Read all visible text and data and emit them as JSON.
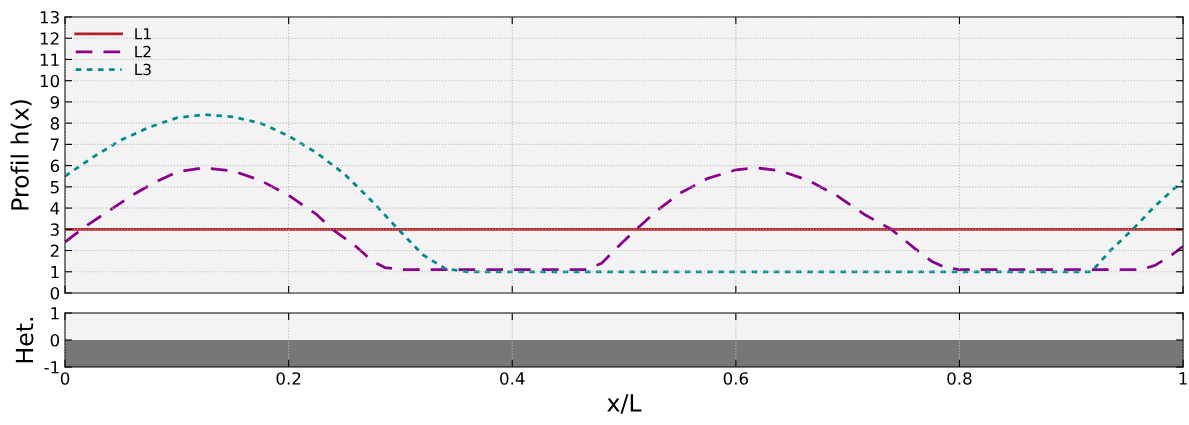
{
  "chart_data": [
    {
      "type": "line",
      "ylabel": "Profil h(x)",
      "xlim": [
        0,
        1
      ],
      "ylim": [
        0,
        13
      ],
      "xticks": [
        0,
        0.2,
        0.4,
        0.6,
        0.8,
        1
      ],
      "yticks": [
        0,
        1,
        2,
        3,
        4,
        5,
        6,
        7,
        8,
        9,
        10,
        11,
        12,
        13
      ],
      "tick_labels": "y",
      "grid": true,
      "legend": "top left",
      "series": [
        {
          "name": "L1",
          "color": "#b22222",
          "line_style": "solid",
          "x": [
            0,
            1
          ],
          "values": [
            3,
            3
          ]
        },
        {
          "name": "L2",
          "color": "#8b008b",
          "line_style": "dashed",
          "x": [
            0,
            0.02,
            0.04,
            0.06,
            0.08,
            0.1,
            0.124,
            0.15,
            0.175,
            0.2,
            0.225,
            0.239,
            0.26,
            0.275,
            0.286,
            0.3,
            0.465,
            0.48,
            0.495,
            0.511,
            0.53,
            0.55,
            0.575,
            0.6,
            0.618,
            0.64,
            0.665,
            0.69,
            0.715,
            0.739,
            0.76,
            0.775,
            0.787,
            0.8,
            0.962,
            0.975,
            0.99,
            1.0
          ],
          "values": [
            2.4,
            3.2,
            3.9,
            4.6,
            5.2,
            5.7,
            5.9,
            5.75,
            5.3,
            4.6,
            3.7,
            3.0,
            2.2,
            1.5,
            1.2,
            1.1,
            1.1,
            1.4,
            2.2,
            3.0,
            3.9,
            4.7,
            5.4,
            5.8,
            5.9,
            5.75,
            5.3,
            4.6,
            3.7,
            3.0,
            2.1,
            1.5,
            1.2,
            1.1,
            1.1,
            1.3,
            1.8,
            2.2
          ]
        },
        {
          "name": "L3",
          "color": "#008b8b",
          "line_style": "dotted",
          "x": [
            0,
            0.025,
            0.05,
            0.075,
            0.1,
            0.125,
            0.15,
            0.175,
            0.2,
            0.225,
            0.25,
            0.275,
            0.298,
            0.32,
            0.34,
            0.36,
            0.918,
            0.935,
            0.955,
            0.975,
            1.0
          ],
          "values": [
            5.5,
            6.4,
            7.2,
            7.8,
            8.25,
            8.4,
            8.3,
            8.0,
            7.4,
            6.6,
            5.6,
            4.3,
            3.0,
            1.8,
            1.15,
            1.0,
            1.0,
            2.0,
            3.0,
            4.1,
            5.3
          ]
        }
      ]
    },
    {
      "type": "area",
      "xlabel": "x/L",
      "ylabel": "Het.",
      "xlim": [
        0,
        1
      ],
      "ylim": [
        -1,
        1
      ],
      "xticks": [
        0,
        0.2,
        0.4,
        0.6,
        0.8,
        1
      ],
      "yticks": [
        -1,
        0,
        1
      ],
      "grid": "x",
      "series": [
        {
          "color": "#777777",
          "x": [
            0,
            1
          ],
          "values": [
            -1,
            -1
          ]
        }
      ]
    }
  ]
}
